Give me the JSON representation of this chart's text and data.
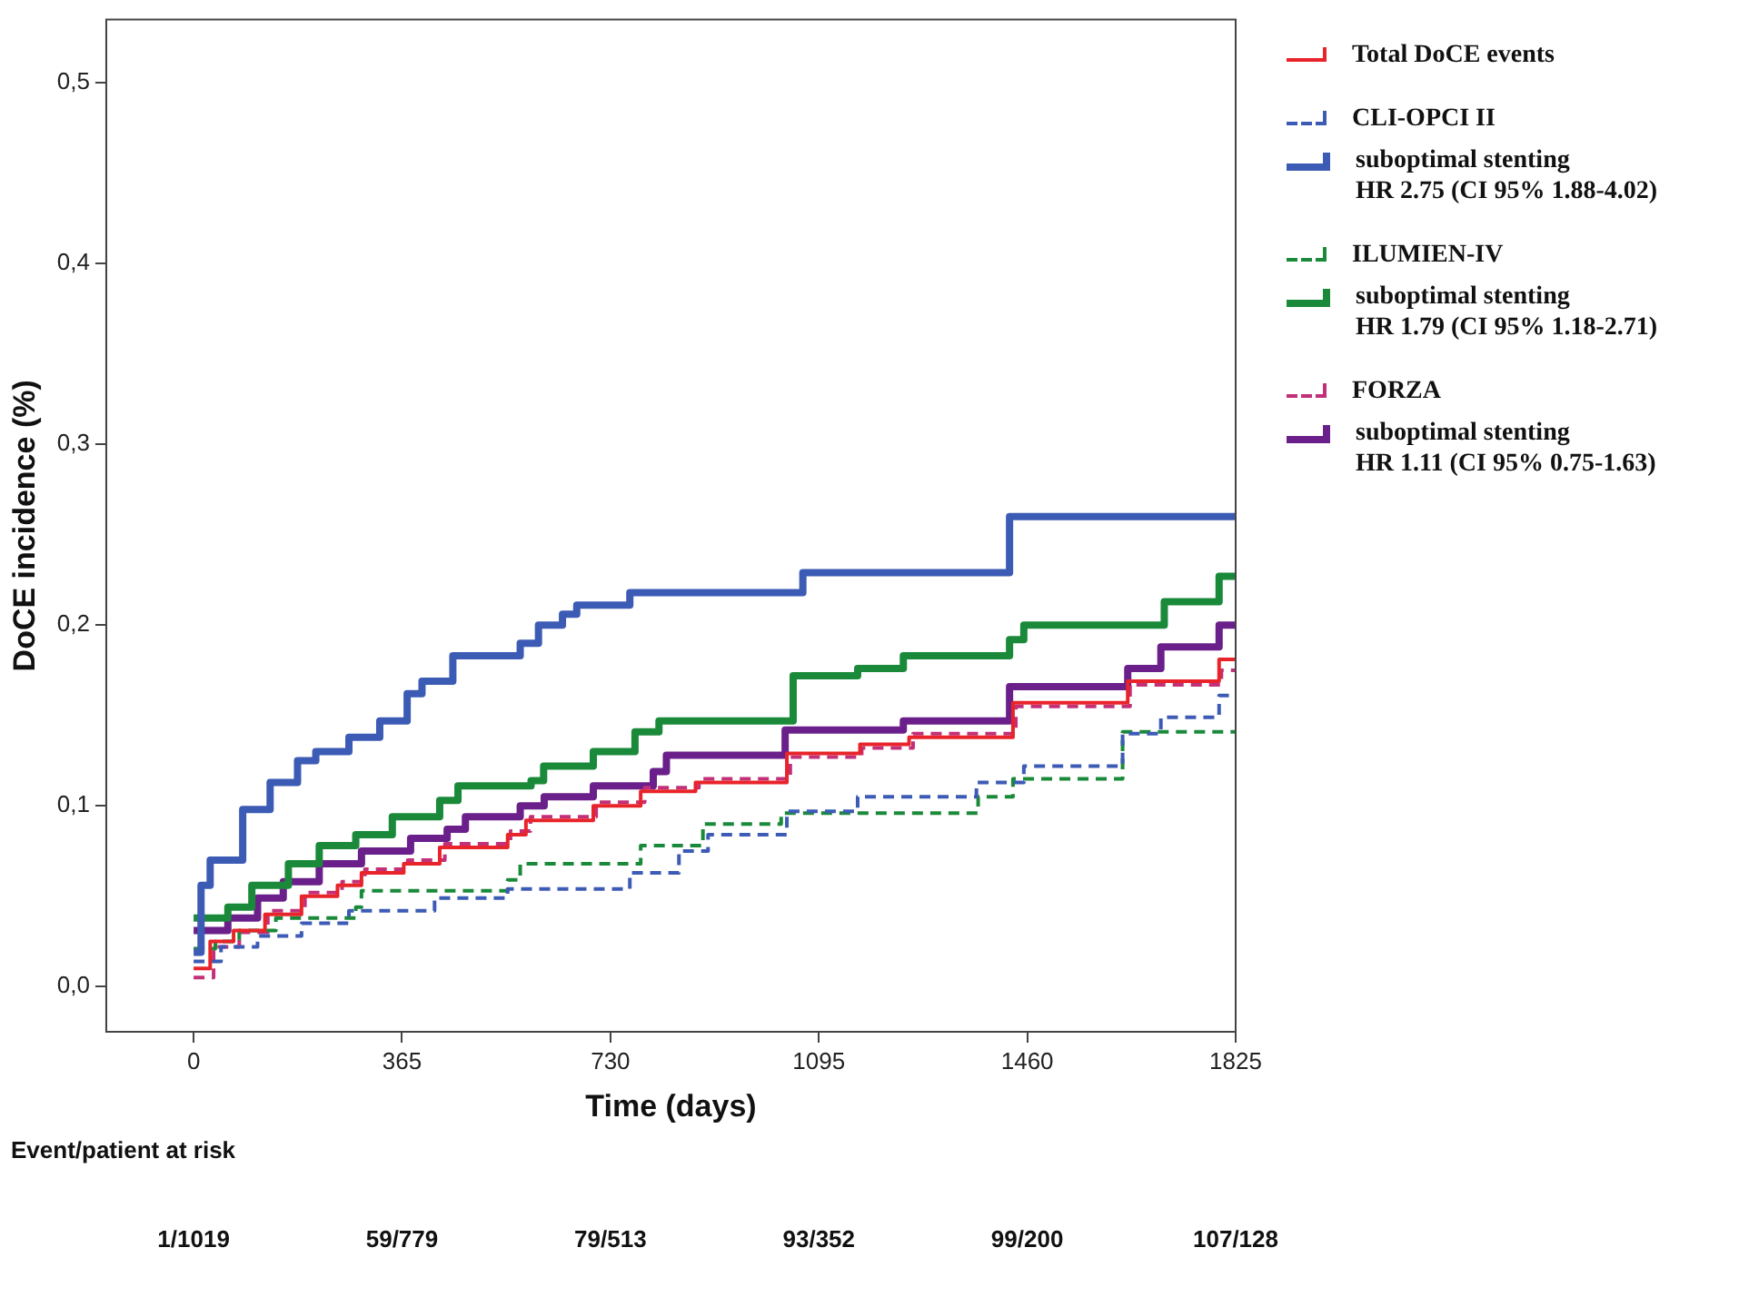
{
  "chart_data": {
    "type": "step",
    "xlabel": "Time (days)",
    "ylabel": "DoCE incidence (%)",
    "xlim": [
      -153,
      1825
    ],
    "xticks": [
      0,
      365,
      730,
      1095,
      1460,
      1825
    ],
    "ylim": [
      -0.025,
      0.535
    ],
    "yticks": [
      {
        "value": 0,
        "label": "0,0"
      },
      {
        "value": 0.1,
        "label": "0,1"
      },
      {
        "value": 0.2,
        "label": "0,2"
      },
      {
        "value": 0.3,
        "label": "0,3"
      },
      {
        "value": 0.4,
        "label": "0,4"
      },
      {
        "value": 0.5,
        "label": "0,5"
      }
    ],
    "grid": false,
    "legend": "right",
    "marker": "none",
    "series": [
      {
        "name": "Total DoCE events",
        "color": "#e8242a",
        "line_style": "solid",
        "x": [
          0,
          29,
          70,
          125,
          189,
          252,
          294,
          368,
          431,
          550,
          582,
          700,
          783,
          879,
          1039,
          1167,
          1253,
          1435,
          1636,
          1796,
          1825
        ],
        "values": [
          0.01,
          0.025,
          0.031,
          0.04,
          0.05,
          0.056,
          0.063,
          0.068,
          0.077,
          0.084,
          0.092,
          0.1,
          0.108,
          0.113,
          0.129,
          0.134,
          0.138,
          0.157,
          0.169,
          0.181,
          0.181
        ]
      },
      {
        "name": "CLI-OPCI II",
        "color": "#3c5bb5",
        "line_style": "dashed",
        "x": [
          0,
          48,
          112,
          189,
          272,
          422,
          550,
          764,
          850,
          901,
          1039,
          1163,
          1371,
          1454,
          1627,
          1694,
          1796,
          1825
        ],
        "values": [
          0.014,
          0.022,
          0.028,
          0.035,
          0.042,
          0.049,
          0.054,
          0.063,
          0.075,
          0.084,
          0.097,
          0.105,
          0.113,
          0.122,
          0.14,
          0.149,
          0.161,
          0.161
        ]
      },
      {
        "name": "suboptimal stenting\nHR 2.75  (CI 95% 1.88-4.02)",
        "color": "#3c5bb5",
        "line_style": "solid",
        "x": [
          0,
          13,
          29,
          86,
          134,
          182,
          214,
          272,
          326,
          374,
          400,
          454,
          572,
          604,
          646,
          671,
          764,
          1067,
          1429,
          1825
        ],
        "values": [
          0.019,
          0.056,
          0.07,
          0.098,
          0.113,
          0.125,
          0.13,
          0.138,
          0.147,
          0.162,
          0.169,
          0.183,
          0.19,
          0.2,
          0.206,
          0.211,
          0.218,
          0.229,
          0.26,
          0.26
        ]
      },
      {
        "name": "ILUMIEN-IV",
        "color": "#1a8a3a",
        "line_style": "dashed",
        "x": [
          0,
          38,
          80,
          144,
          284,
          294,
          550,
          572,
          783,
          892,
          1029,
          1374,
          1435,
          1627,
          1825
        ],
        "values": [
          0.021,
          0.025,
          0.031,
          0.038,
          0.044,
          0.053,
          0.059,
          0.068,
          0.078,
          0.09,
          0.096,
          0.105,
          0.115,
          0.141,
          0.141
        ]
      },
      {
        "name": "suboptimal stenting\nHR 1.79 (CI 95% 1.18-2.71)",
        "color": "#1a8a3a",
        "line_style": "solid",
        "x": [
          0,
          60,
          102,
          166,
          220,
          284,
          348,
          431,
          463,
          591,
          613,
          700,
          773,
          815,
          1050,
          1163,
          1243,
          1429,
          1454,
          1700,
          1796,
          1825
        ],
        "values": [
          0.038,
          0.044,
          0.056,
          0.068,
          0.078,
          0.084,
          0.094,
          0.103,
          0.111,
          0.114,
          0.122,
          0.13,
          0.141,
          0.147,
          0.172,
          0.176,
          0.183,
          0.192,
          0.2,
          0.213,
          0.227,
          0.227
        ]
      },
      {
        "name": "FORZA",
        "color": "#c2307a",
        "line_style": "dashed",
        "x": [
          0,
          35,
          80,
          130,
          195,
          260,
          300,
          375,
          440,
          555,
          590,
          705,
          790,
          885,
          1045,
          1170,
          1260,
          1440,
          1640,
          1800,
          1825
        ],
        "values": [
          0.005,
          0.022,
          0.03,
          0.042,
          0.052,
          0.058,
          0.065,
          0.07,
          0.079,
          0.086,
          0.094,
          0.102,
          0.11,
          0.115,
          0.127,
          0.132,
          0.14,
          0.155,
          0.167,
          0.175,
          0.175
        ]
      },
      {
        "name": "suboptimal stenting\nHR 1.11 (CI 95% 0.75-1.63)",
        "color": "#6a1f8a",
        "line_style": "solid",
        "x": [
          0,
          60,
          112,
          157,
          220,
          294,
          380,
          444,
          476,
          572,
          614,
          700,
          805,
          828,
          1036,
          1243,
          1429,
          1636,
          1694,
          1796,
          1825
        ],
        "values": [
          0.031,
          0.038,
          0.049,
          0.058,
          0.068,
          0.075,
          0.082,
          0.087,
          0.094,
          0.1,
          0.105,
          0.111,
          0.119,
          0.128,
          0.142,
          0.147,
          0.166,
          0.176,
          0.188,
          0.2,
          0.2
        ]
      }
    ],
    "annotations": [
      "Event/patient at risk",
      "1/1019",
      "59/779",
      "79/513",
      "93/352",
      "99/200",
      "107/128"
    ]
  }
}
